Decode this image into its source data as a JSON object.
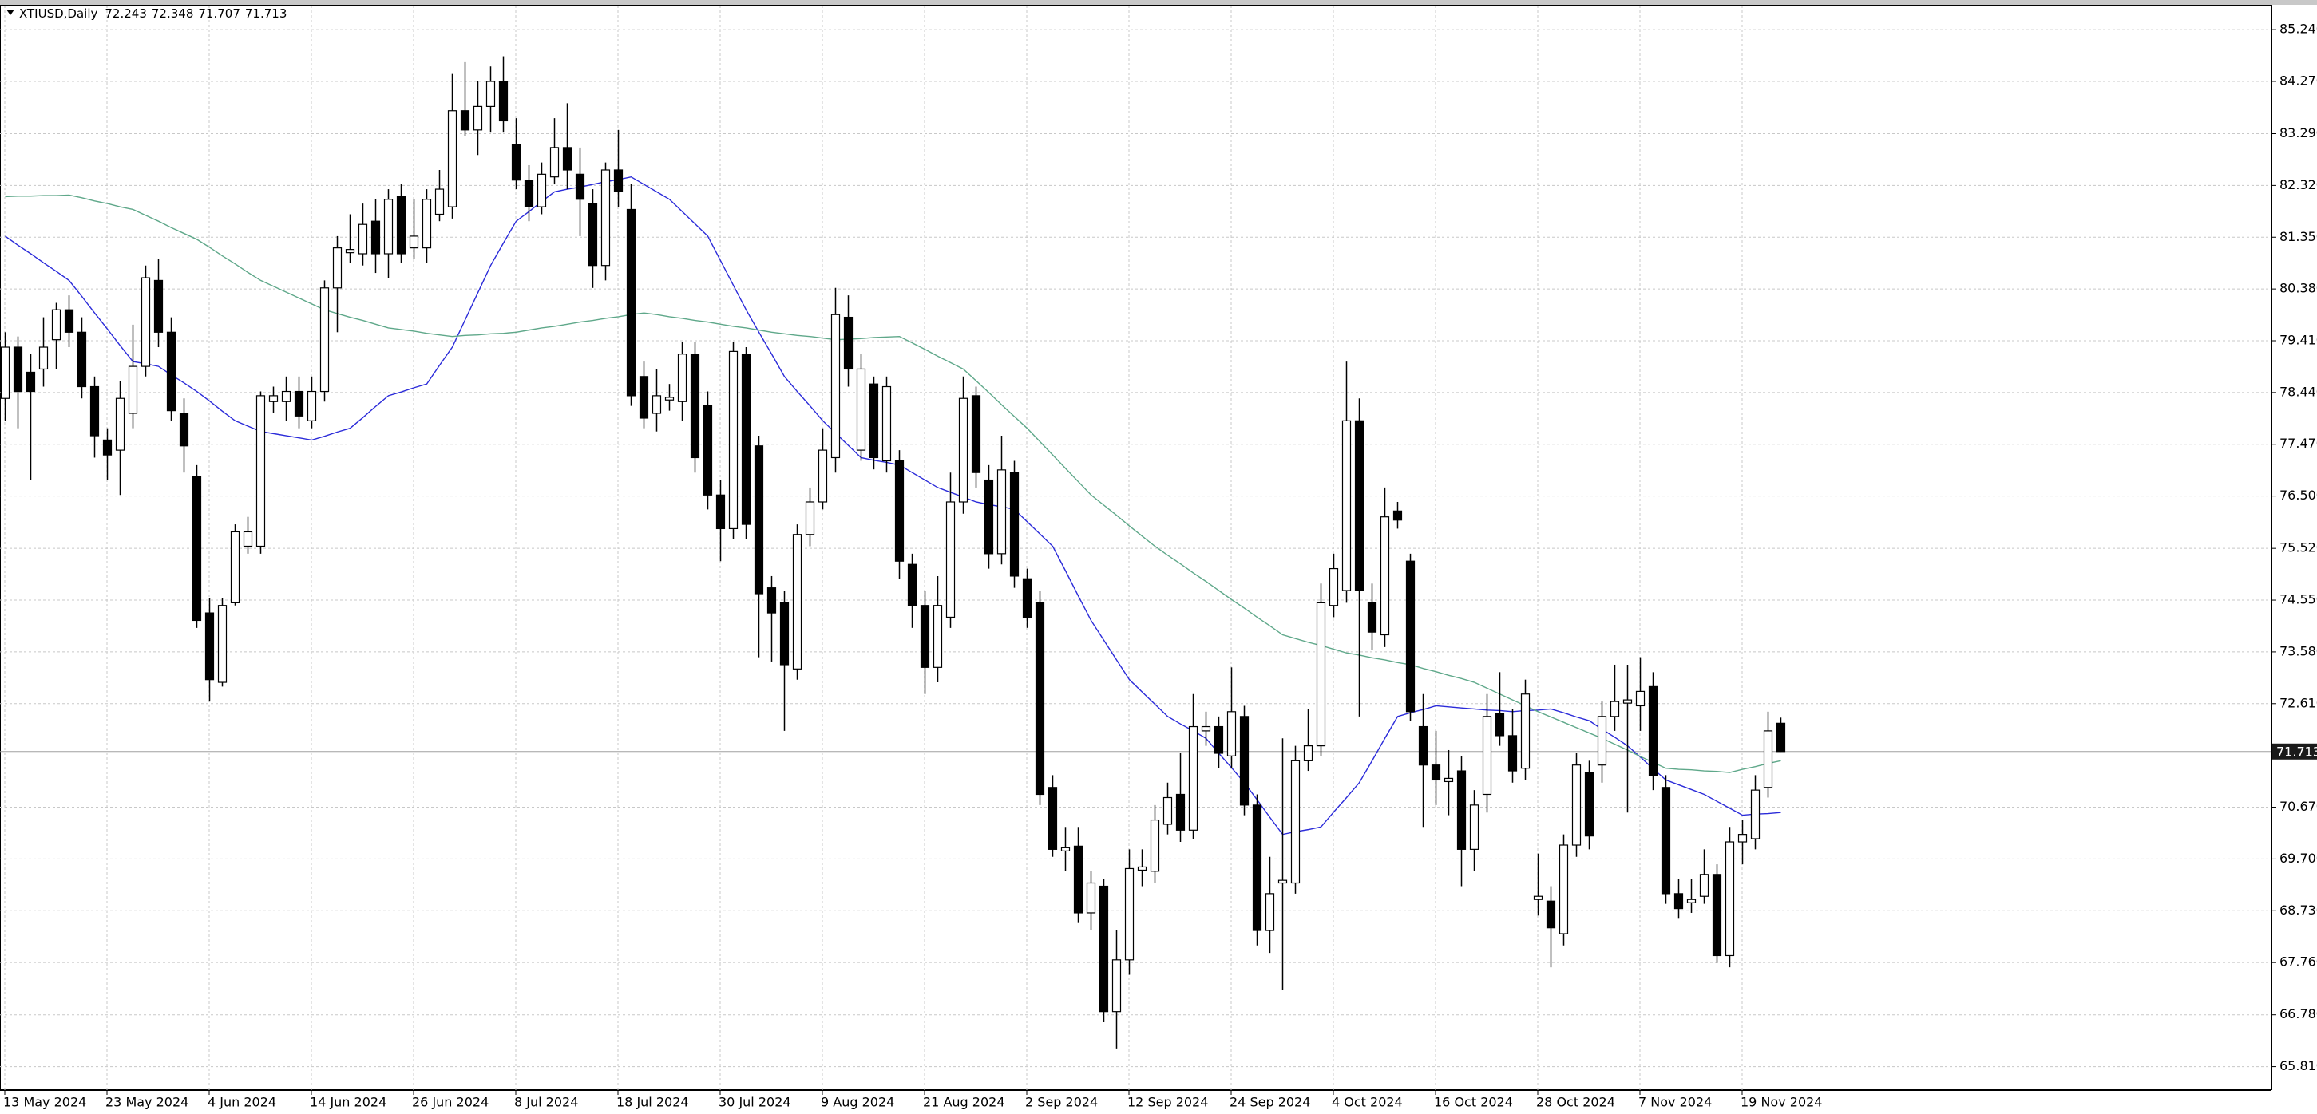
{
  "chart_data": {
    "type": "candlestick",
    "title": "XTIUSD,Daily",
    "categories": [
      "13 May 2024",
      null,
      null,
      null,
      null,
      null,
      null,
      null,
      "23 May 2024",
      null,
      null,
      null,
      null,
      null,
      null,
      null,
      "4 Jun 2024",
      null,
      null,
      null,
      null,
      null,
      null,
      null,
      "14 Jun 2024",
      null,
      null,
      null,
      null,
      null,
      null,
      null,
      "26 Jun 2024",
      null,
      null,
      null,
      null,
      null,
      null,
      null,
      "8 Jul 2024",
      null,
      null,
      null,
      null,
      null,
      null,
      null,
      "18 Jul 2024",
      null,
      null,
      null,
      null,
      null,
      null,
      null,
      "30 Jul 2024",
      null,
      null,
      null,
      null,
      null,
      null,
      null,
      "9 Aug 2024",
      null,
      null,
      null,
      null,
      null,
      null,
      null,
      "21 Aug 2024",
      null,
      null,
      null,
      null,
      null,
      null,
      null,
      "2 Sep 2024",
      null,
      null,
      null,
      null,
      null,
      null,
      null,
      "12 Sep 2024",
      null,
      null,
      null,
      null,
      null,
      null,
      null,
      "24 Sep 2024",
      null,
      null,
      null,
      null,
      null,
      null,
      null,
      "4 Oct 2024",
      null,
      null,
      null,
      null,
      null,
      null,
      null,
      "16 Oct 2024",
      null,
      null,
      null,
      null,
      null,
      null,
      null,
      "28 Oct 2024",
      null,
      null,
      null,
      null,
      null,
      null,
      null,
      "7 Nov 2024",
      null,
      null,
      null,
      null,
      null,
      null,
      null,
      "19 Nov 2024",
      null,
      null,
      null
    ],
    "open": [
      78.33,
      79.29,
      78.82,
      78.88,
      79.43,
      79.99,
      79.57,
      78.55,
      77.55,
      77.36,
      78.05,
      78.93,
      80.54,
      79.57,
      78.05,
      76.86,
      74.31,
      73.01,
      74.5,
      75.56,
      75.56,
      78.27,
      78.27,
      78.46,
      77.91,
      78.46,
      80.4,
      81.06,
      81.04,
      81.65,
      81.04,
      82.11,
      81.15,
      81.15,
      81.78,
      81.92,
      83.72,
      83.36,
      83.8,
      84.27,
      83.08,
      82.42,
      81.92,
      82.48,
      83.03,
      82.53,
      81.98,
      80.82,
      82.61,
      81.87,
      78.74,
      78.05,
      78.3,
      78.27,
      79.16,
      78.19,
      76.52,
      75.89,
      79.16,
      77.44,
      74.78,
      74.5,
      73.26,
      75.78,
      76.39,
      77.22,
      79.85,
      77.36,
      78.6,
      77.16,
      77.16,
      75.22,
      74.45,
      73.29,
      74.23,
      76.39,
      78.38,
      76.8,
      75.42,
      76.94,
      74.95,
      74.5,
      71.04,
      69.85,
      69.94,
      68.69,
      69.19,
      66.84,
      67.81,
      69.49,
      69.47,
      70.35,
      70.91,
      70.24,
      72.1,
      72.18,
      71.63,
      72.37,
      70.71,
      68.36,
      69.25,
      69.25,
      71.54,
      71.82,
      74.45,
      74.73,
      77.91,
      74.5,
      73.9,
      76.22,
      75.28,
      72.18,
      71.46,
      71.15,
      71.35,
      69.88,
      70.91,
      72.43,
      72.01,
      71.4,
      68.94,
      68.91,
      68.3,
      69.96,
      71.32,
      71.46,
      72.37,
      72.62,
      72.57,
      72.93,
      71.04,
      69.05,
      68.88,
      69.0,
      69.41,
      67.89,
      70.02,
      70.08,
      71.04,
      72.243
    ],
    "high": [
      79.57,
      79.49,
      79.16,
      79.85,
      80.12,
      80.26,
      79.85,
      78.74,
      77.77,
      78.66,
      79.71,
      80.82,
      80.95,
      79.85,
      78.33,
      77.08,
      74.59,
      74.59,
      75.97,
      76.11,
      78.46,
      78.55,
      78.74,
      78.74,
      78.74,
      80.54,
      81.37,
      81.78,
      81.98,
      82.06,
      82.25,
      82.34,
      82.06,
      82.25,
      82.61,
      84.41,
      84.63,
      84.27,
      84.55,
      84.74,
      83.58,
      82.7,
      82.75,
      83.58,
      83.86,
      83.03,
      82.25,
      82.75,
      83.36,
      82.34,
      79.02,
      78.88,
      78.6,
      79.38,
      79.38,
      78.46,
      76.8,
      79.38,
      79.29,
      77.63,
      75.0,
      74.73,
      75.97,
      76.66,
      77.77,
      80.4,
      80.26,
      79.16,
      78.74,
      78.74,
      77.36,
      75.42,
      74.73,
      75.0,
      76.94,
      78.74,
      78.55,
      77.08,
      77.63,
      77.16,
      75.14,
      74.73,
      71.27,
      70.3,
      70.3,
      69.47,
      69.33,
      68.36,
      69.88,
      69.88,
      70.71,
      71.13,
      71.68,
      72.79,
      72.46,
      72.37,
      73.29,
      72.57,
      70.91,
      69.74,
      71.96,
      71.82,
      72.51,
      74.86,
      75.42,
      79.02,
      78.33,
      74.86,
      76.66,
      76.39,
      75.42,
      72.79,
      72.1,
      71.74,
      71.63,
      70.99,
      72.79,
      73.2,
      72.51,
      73.06,
      69.8,
      69.19,
      70.16,
      71.68,
      71.54,
      72.65,
      73.34,
      73.34,
      73.48,
      73.2,
      71.27,
      69.33,
      69.33,
      69.88,
      69.6,
      70.3,
      70.43,
      71.27,
      72.46,
      72.348
    ],
    "low": [
      77.91,
      77.77,
      76.8,
      78.55,
      78.88,
      79.29,
      78.33,
      77.22,
      76.8,
      76.52,
      77.77,
      78.74,
      79.29,
      77.91,
      76.94,
      74.03,
      72.65,
      72.93,
      74.45,
      75.42,
      75.42,
      78.05,
      77.91,
      77.77,
      77.77,
      78.27,
      79.57,
      80.87,
      80.82,
      80.68,
      80.59,
      80.87,
      80.95,
      80.87,
      81.65,
      81.7,
      83.25,
      82.89,
      83.31,
      83.31,
      82.25,
      81.65,
      81.78,
      82.34,
      82.25,
      81.37,
      80.4,
      80.54,
      81.92,
      78.19,
      77.77,
      77.71,
      78.1,
      77.91,
      76.94,
      76.25,
      75.28,
      75.69,
      75.69,
      73.48,
      73.4,
      72.1,
      73.06,
      75.56,
      76.25,
      76.94,
      78.55,
      77.16,
      77.0,
      76.94,
      74.95,
      74.03,
      72.79,
      73.01,
      74.03,
      76.17,
      76.66,
      75.14,
      75.22,
      74.78,
      74.03,
      70.71,
      69.74,
      69.47,
      68.5,
      68.36,
      66.64,
      66.15,
      67.53,
      69.19,
      69.25,
      70.16,
      70.02,
      70.08,
      71.82,
      71.4,
      71.4,
      70.52,
      68.08,
      67.94,
      67.25,
      69.05,
      71.35,
      71.63,
      74.23,
      74.5,
      72.37,
      73.62,
      73.67,
      75.89,
      72.29,
      70.3,
      70.71,
      70.52,
      69.19,
      69.47,
      70.57,
      71.82,
      71.13,
      71.18,
      68.64,
      67.67,
      68.08,
      69.74,
      69.88,
      71.13,
      72.1,
      70.57,
      72.1,
      70.99,
      68.86,
      68.58,
      68.69,
      68.86,
      67.75,
      67.67,
      69.6,
      69.88,
      70.85,
      71.707
    ],
    "close": [
      79.29,
      78.46,
      78.46,
      79.29,
      79.99,
      79.57,
      78.55,
      77.63,
      77.27,
      78.33,
      78.93,
      80.59,
      79.57,
      78.1,
      77.44,
      74.17,
      73.06,
      74.45,
      75.83,
      75.83,
      78.38,
      78.38,
      78.46,
      78.0,
      78.46,
      80.4,
      81.15,
      81.12,
      81.59,
      81.04,
      82.06,
      81.04,
      81.37,
      82.06,
      82.25,
      83.72,
      83.36,
      83.8,
      84.27,
      83.53,
      82.42,
      81.92,
      82.53,
      83.03,
      82.61,
      82.06,
      80.82,
      82.61,
      82.2,
      78.38,
      77.96,
      78.38,
      78.35,
      79.16,
      77.22,
      76.52,
      75.89,
      79.21,
      75.97,
      74.67,
      74.31,
      73.34,
      75.78,
      76.39,
      77.36,
      79.9,
      78.88,
      78.88,
      77.22,
      78.55,
      75.28,
      74.45,
      73.29,
      74.45,
      76.39,
      78.33,
      76.94,
      75.42,
      76.99,
      75.0,
      74.23,
      70.91,
      69.88,
      69.91,
      68.69,
      69.25,
      66.84,
      67.81,
      69.52,
      69.55,
      70.43,
      70.85,
      70.24,
      72.18,
      72.18,
      71.68,
      72.46,
      70.71,
      68.36,
      69.05,
      69.3,
      71.54,
      71.82,
      74.5,
      75.14,
      77.91,
      74.73,
      73.95,
      76.11,
      76.05,
      72.46,
      71.46,
      71.18,
      71.21,
      69.88,
      70.71,
      72.37,
      72.01,
      71.35,
      72.79,
      69.0,
      68.41,
      69.96,
      71.46,
      70.13,
      72.37,
      72.65,
      72.68,
      72.84,
      71.27,
      69.05,
      68.77,
      68.94,
      69.41,
      67.89,
      70.02,
      70.16,
      70.99,
      72.1,
      71.713
    ],
    "up_color": "#ffffff",
    "down_color": "#000000",
    "overlays": [
      {
        "color": "#2b2bd9",
        "values": [
          81.37,
          81.2,
          81.04,
          80.87,
          80.71,
          80.54,
          80.24,
          79.93,
          79.63,
          79.32,
          79.02,
          78.98,
          78.93,
          78.77,
          78.62,
          78.46,
          78.28,
          78.09,
          77.91,
          77.81,
          77.71,
          77.67,
          77.63,
          77.59,
          77.55,
          77.62,
          77.7,
          77.77,
          77.97,
          78.18,
          78.38,
          78.45,
          78.53,
          78.6,
          78.95,
          79.29,
          79.8,
          80.31,
          80.82,
          81.24,
          81.65,
          81.83,
          82.02,
          82.2,
          82.25,
          82.29,
          82.34,
          82.39,
          82.43,
          82.48,
          82.34,
          82.2,
          82.06,
          81.83,
          81.6,
          81.37,
          80.91,
          80.45,
          79.99,
          79.57,
          79.16,
          78.74,
          78.46,
          78.19,
          77.91,
          77.68,
          77.45,
          77.22,
          77.17,
          77.13,
          77.08,
          76.94,
          76.8,
          76.66,
          76.57,
          76.48,
          76.39,
          76.34,
          76.3,
          76.25,
          76.02,
          75.79,
          75.56,
          75.1,
          74.63,
          74.17,
          73.8,
          73.43,
          73.06,
          72.83,
          72.6,
          72.37,
          72.23,
          72.1,
          71.96,
          71.68,
          71.41,
          71.13,
          70.81,
          70.48,
          70.16,
          70.21,
          70.25,
          70.3,
          70.58,
          70.85,
          71.13,
          71.54,
          71.96,
          72.37,
          72.44,
          72.5,
          72.57,
          72.55,
          72.53,
          72.51,
          72.49,
          72.48,
          72.46,
          72.48,
          72.49,
          72.51,
          72.44,
          72.36,
          72.29,
          72.13,
          71.98,
          71.82,
          71.61,
          71.39,
          71.18,
          71.09,
          71.0,
          70.91,
          70.78,
          70.65,
          70.52,
          70.54,
          70.55,
          70.57
        ]
      },
      {
        "color": "#5fa88a",
        "values": [
          82.11,
          82.12,
          82.12,
          82.13,
          82.13,
          82.14,
          82.09,
          82.03,
          81.98,
          81.92,
          81.87,
          81.76,
          81.65,
          81.53,
          81.42,
          81.31,
          81.16,
          81.0,
          80.85,
          80.69,
          80.54,
          80.43,
          80.32,
          80.21,
          80.1,
          79.99,
          79.92,
          79.85,
          79.79,
          79.72,
          79.65,
          79.62,
          79.59,
          79.55,
          79.52,
          79.49,
          79.51,
          79.52,
          79.54,
          79.55,
          79.57,
          79.61,
          79.65,
          79.68,
          79.72,
          79.76,
          79.79,
          79.83,
          79.86,
          79.9,
          79.93,
          79.9,
          79.86,
          79.83,
          79.79,
          79.76,
          79.72,
          79.68,
          79.65,
          79.61,
          79.57,
          79.54,
          79.51,
          79.49,
          79.46,
          79.43,
          79.44,
          79.45,
          79.47,
          79.48,
          79.49,
          79.37,
          79.25,
          79.12,
          79.0,
          78.88,
          78.66,
          78.44,
          78.21,
          77.99,
          77.77,
          77.52,
          77.27,
          77.02,
          76.77,
          76.52,
          76.33,
          76.14,
          75.94,
          75.75,
          75.56,
          75.39,
          75.23,
          75.06,
          74.9,
          74.73,
          74.56,
          74.4,
          74.23,
          74.07,
          73.9,
          73.83,
          73.76,
          73.7,
          73.63,
          73.56,
          73.52,
          73.47,
          73.43,
          73.38,
          73.34,
          73.27,
          73.21,
          73.14,
          73.08,
          73.01,
          72.9,
          72.79,
          72.68,
          72.57,
          72.46,
          72.36,
          72.26,
          72.16,
          72.06,
          71.96,
          71.85,
          71.74,
          71.62,
          71.51,
          71.4,
          71.38,
          71.37,
          71.35,
          71.34,
          71.32,
          71.38,
          71.43,
          71.49,
          71.54
        ]
      }
    ],
    "ylim": [
      65.37,
      85.66
    ],
    "yticks": [
      {
        "value": 85.24,
        "label": "85.240"
      },
      {
        "value": 84.27,
        "label": "84.270"
      },
      {
        "value": 83.29,
        "label": "83.290"
      },
      {
        "value": 82.32,
        "label": "82.320"
      },
      {
        "value": 81.35,
        "label": "81.350"
      },
      {
        "value": 80.38,
        "label": "80.380"
      },
      {
        "value": 79.41,
        "label": "79.410"
      },
      {
        "value": 78.44,
        "label": "78.440"
      },
      {
        "value": 77.47,
        "label": "77.470"
      },
      {
        "value": 76.5,
        "label": "76.500"
      },
      {
        "value": 75.52,
        "label": "75.520"
      },
      {
        "value": 74.55,
        "label": "74.550"
      },
      {
        "value": 73.58,
        "label": "73.580"
      },
      {
        "value": 72.61,
        "label": "72.610"
      },
      {
        "value": 70.67,
        "label": "70.670"
      },
      {
        "value": 69.7,
        "label": "69.700"
      },
      {
        "value": 68.73,
        "label": "68.730"
      },
      {
        "value": 67.76,
        "label": "67.760"
      },
      {
        "value": 66.78,
        "label": "66.780"
      },
      {
        "value": 65.81,
        "label": "65.810"
      }
    ],
    "grid": true
  }
}
